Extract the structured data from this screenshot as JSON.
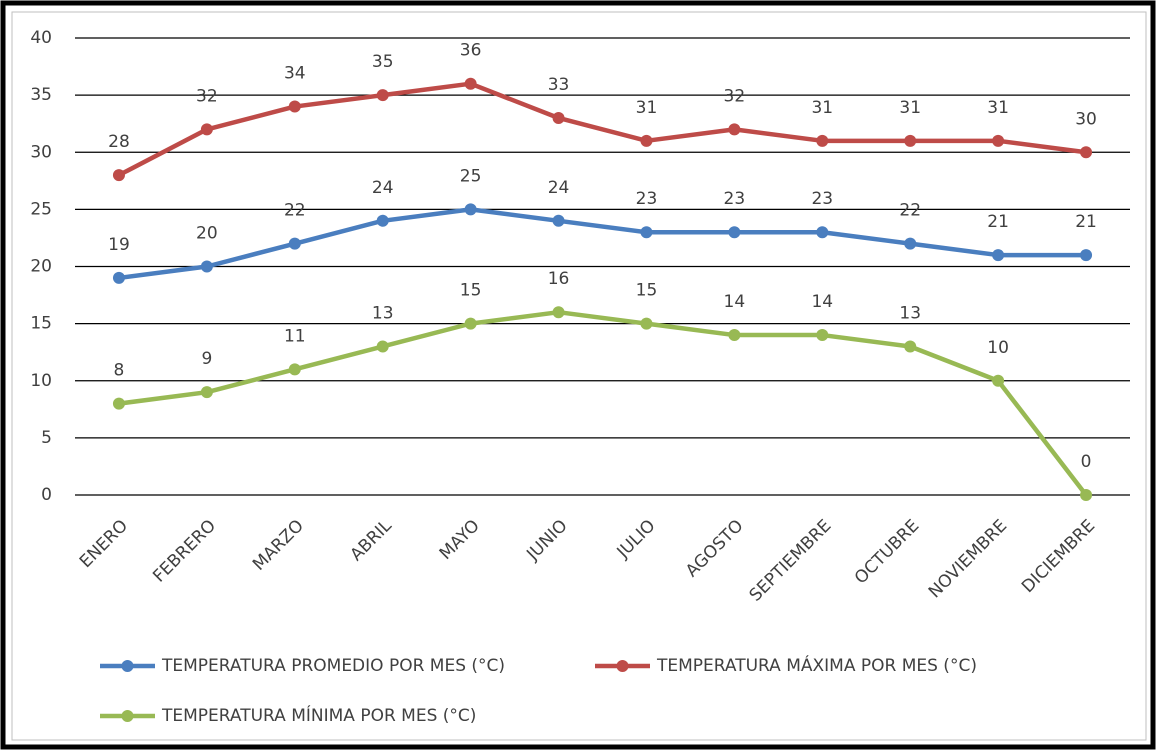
{
  "chart_data": {
    "type": "line",
    "categories": [
      "ENERO",
      "FEBRERO",
      "MARZO",
      "ABRIL",
      "MAYO",
      "JUNIO",
      "JULIO",
      "AGOSTO",
      "SEPTIEMBRE",
      "OCTUBRE",
      "NOVIEMBRE",
      "DICIEMBRE"
    ],
    "series": [
      {
        "name": "TEMPERATURA PROMEDIO POR MES (°C)",
        "color": "#4a7ebf",
        "values": [
          19,
          20,
          22,
          24,
          25,
          24,
          23,
          23,
          23,
          22,
          21,
          21
        ]
      },
      {
        "name": "TEMPERATURA MÁXIMA POR MES (°C)",
        "color": "#be4b48",
        "values": [
          28,
          32,
          34,
          35,
          36,
          33,
          31,
          32,
          31,
          31,
          31,
          30
        ]
      },
      {
        "name": "TEMPERATURA MÍNIMA POR MES (°C)",
        "color": "#98b954",
        "values": [
          8,
          9,
          11,
          13,
          15,
          16,
          15,
          14,
          14,
          13,
          10,
          0
        ]
      }
    ],
    "ylim": [
      0,
      40
    ],
    "yticks": [
      0,
      5,
      10,
      15,
      20,
      25,
      30,
      35,
      40
    ],
    "grid": true,
    "legend": "bottom"
  }
}
